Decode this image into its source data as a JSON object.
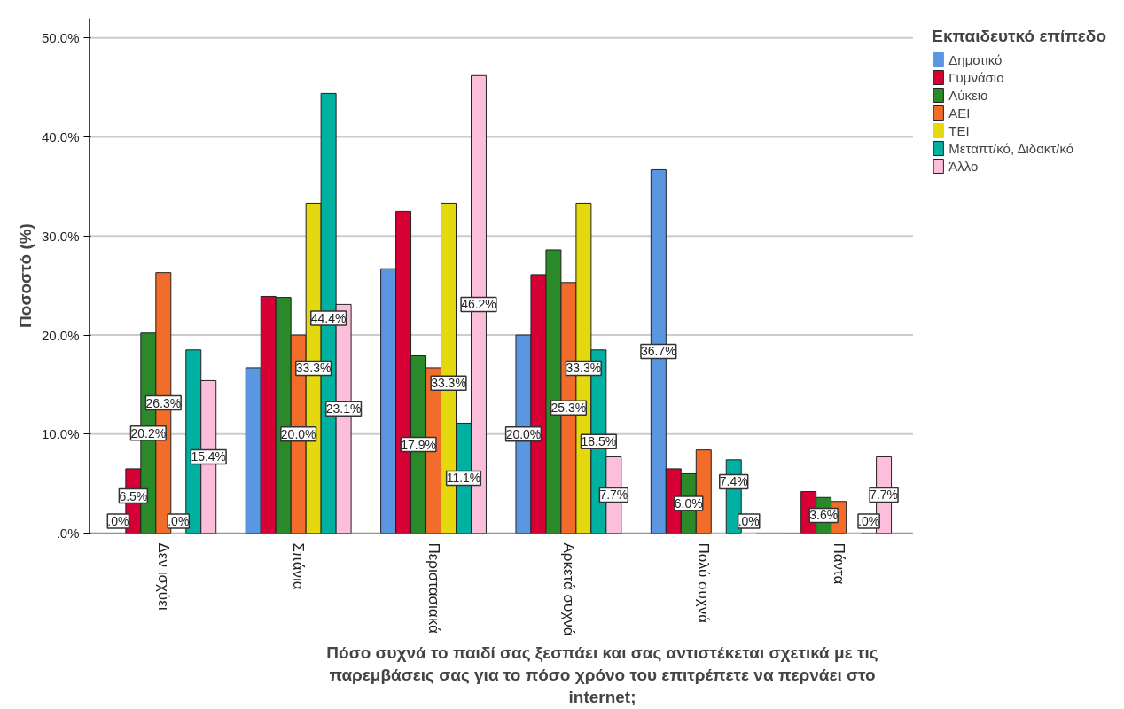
{
  "chart_data": {
    "type": "bar",
    "xlabel": "Πόσο συχνά το παιδί σας ξεσπάει και σας αντιστέκεται σχετικά με τις παρεμβάσεις σας για το πόσο χρόνο του επιτρέπετε να περνάει στο internet;",
    "ylabel": "Ποσοστό (%)",
    "legend_title": "Εκπαιδευτκό επίπεδο",
    "categories": [
      "Δεν ισχύει",
      "Σπάνια",
      "Περιστασιακά",
      "Αρκετά συχνά",
      "Πολύ συχνά",
      "Πάντα"
    ],
    "series": [
      {
        "name": "Δημοτικό",
        "color": "#5b97e0",
        "values": [
          0,
          16.7,
          26.7,
          20.0,
          36.7,
          0
        ],
        "value_labels": [
          ".0%",
          null,
          null,
          "20.0%",
          "36.7%",
          null
        ]
      },
      {
        "name": "Γυμνάσιο",
        "color": "#d70035",
        "values": [
          6.5,
          23.9,
          32.5,
          26.1,
          6.5,
          4.2
        ],
        "value_labels": [
          "6.5%",
          null,
          null,
          null,
          null,
          null
        ]
      },
      {
        "name": "Λύκειο",
        "color": "#2a8a2a",
        "values": [
          20.2,
          23.8,
          17.9,
          28.6,
          6.0,
          3.6
        ],
        "value_labels": [
          "20.2%",
          null,
          "17.9%",
          null,
          "6.0%",
          "3.6%"
        ]
      },
      {
        "name": "ΑΕΙ",
        "color": "#f26c2a",
        "values": [
          26.3,
          20.0,
          16.7,
          25.3,
          8.4,
          3.2
        ],
        "value_labels": [
          "26.3%",
          "20.0%",
          null,
          "25.3%",
          null,
          null
        ]
      },
      {
        "name": "ΤΕΙ",
        "color": "#e4d80e",
        "values": [
          0,
          33.3,
          33.3,
          33.3,
          0,
          0
        ],
        "value_labels": [
          ".0%",
          "33.3%",
          "33.3%",
          "33.3%",
          null,
          null
        ]
      },
      {
        "name": "Μεταπτ/κό, Διδακτ/κό",
        "color": "#00b0a0",
        "values": [
          18.5,
          44.4,
          11.1,
          18.5,
          7.4,
          0
        ],
        "value_labels": [
          null,
          "44.4%",
          "11.1%",
          "18.5%",
          "7.4%",
          ".0%"
        ]
      },
      {
        "name": "Άλλο",
        "color": "#fbbfdc",
        "values": [
          15.4,
          23.1,
          46.2,
          7.7,
          0,
          7.7
        ],
        "value_labels": [
          "15.4%",
          "23.1%",
          "46.2%",
          "7.7%",
          ".0%",
          "7.7%"
        ]
      }
    ],
    "ylim": [
      0,
      52
    ],
    "yticks": [
      {
        "value": 0,
        "label": ".0%"
      },
      {
        "value": 10,
        "label": "10.0%"
      },
      {
        "value": 20,
        "label": "20.0%"
      },
      {
        "value": 30,
        "label": "30.0%"
      },
      {
        "value": 40,
        "label": "40.0%"
      },
      {
        "value": 50,
        "label": "50.0%"
      }
    ],
    "grid": "y",
    "legend": "right"
  }
}
